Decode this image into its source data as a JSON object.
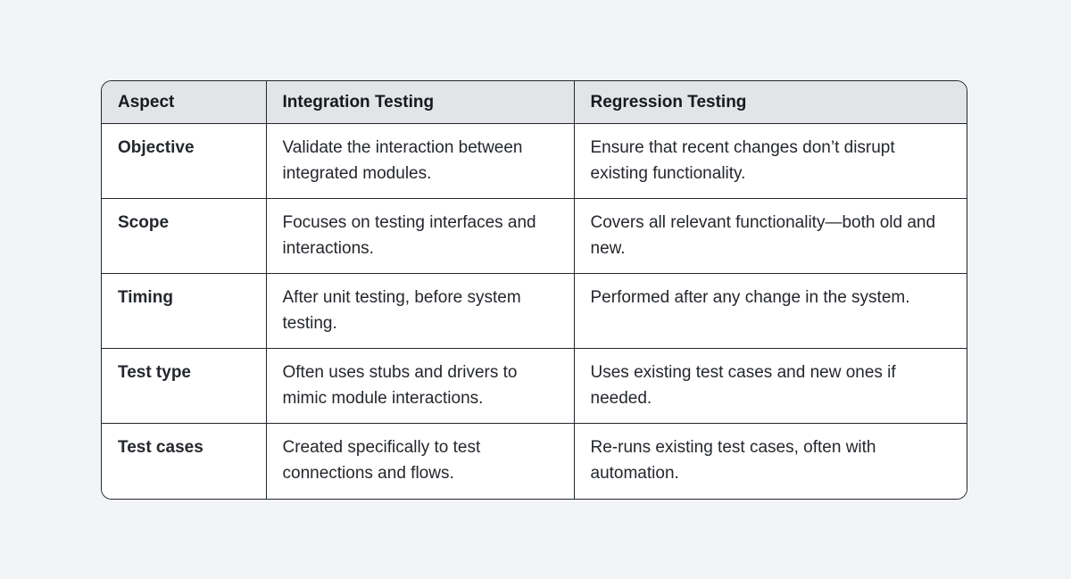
{
  "table": {
    "columns": [
      {
        "label": "Aspect"
      },
      {
        "label": "Integration Testing"
      },
      {
        "label": "Regression Testing"
      }
    ],
    "rows": [
      {
        "aspect": "Objective",
        "integration": "Validate the interaction between integrated modules.",
        "regression": "Ensure that recent changes don’t disrupt existing functionality."
      },
      {
        "aspect": "Scope",
        "integration": "Focuses on testing interfaces and interactions.",
        "regression": "Covers all relevant functionality—both old and new."
      },
      {
        "aspect": "Timing",
        "integration": "After unit testing, before system testing.",
        "regression": "Performed after any change in the system."
      },
      {
        "aspect": "Test type",
        "integration": "Often uses stubs and drivers to mimic module interactions.",
        "regression": "Uses existing test cases and new ones if needed."
      },
      {
        "aspect": "Test cases",
        "integration": "Created specifically to test connections and flows.",
        "regression": "Re-runs existing test cases, often with automation."
      }
    ],
    "colors": {
      "page_bg": "#f3f4f6",
      "header_bg": "#e2e4e8",
      "body_bg": "#ffffff",
      "border": "#22262b",
      "text": "#24272c"
    }
  }
}
